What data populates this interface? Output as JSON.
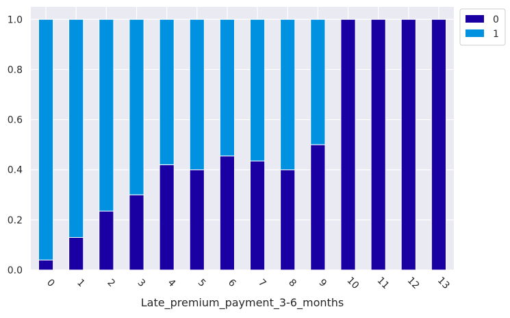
{
  "chart_data": {
    "type": "bar",
    "stacked": true,
    "title": "",
    "xlabel": "Late_premium_payment_3-6_months",
    "ylabel": "",
    "categories": [
      "0",
      "1",
      "2",
      "3",
      "4",
      "5",
      "6",
      "7",
      "8",
      "9",
      "10",
      "11",
      "12",
      "13"
    ],
    "ylim": [
      0,
      1.05
    ],
    "yticks": [
      0.0,
      0.2,
      0.4,
      0.6,
      0.8,
      1.0
    ],
    "ytick_labels": [
      "0.0",
      "0.2",
      "0.4",
      "0.6",
      "0.8",
      "1.0"
    ],
    "grid": true,
    "legend_position": "top-right, outside plot",
    "series": [
      {
        "name": "0",
        "color": "#1a00a3",
        "values": [
          0.04,
          0.13,
          0.235,
          0.3,
          0.42,
          0.4,
          0.455,
          0.435,
          0.4,
          0.5,
          1.0,
          1.0,
          1.0,
          1.0
        ]
      },
      {
        "name": "1",
        "color": "#0092e0",
        "values": [
          0.96,
          0.87,
          0.765,
          0.7,
          0.58,
          0.6,
          0.545,
          0.565,
          0.6,
          0.5,
          0.0,
          0.0,
          0.0,
          0.0
        ]
      }
    ],
    "background_color": "#eaeaf2",
    "gridline_color": "#ffffff"
  }
}
